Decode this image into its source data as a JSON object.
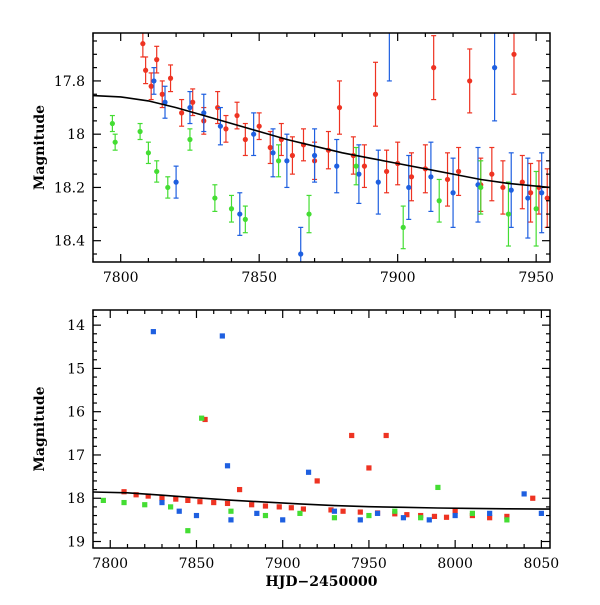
{
  "chart_data": [
    {
      "type": "scatter",
      "title": "",
      "xlabel": "",
      "ylabel": "Magnitude",
      "xlim": [
        7790,
        7955
      ],
      "ylim": [
        18.48,
        17.62
      ],
      "y_inverted": true,
      "grid": false,
      "xticks": [
        "7800",
        "7850",
        "7900",
        "7950"
      ],
      "yticks": [
        "17.8",
        "18",
        "18.2",
        "18.4"
      ],
      "colors": {
        "red": "#ee3322",
        "blue": "#1e5fe0",
        "green": "#44dd33",
        "model": "#000000"
      },
      "series": [
        {
          "color": "red",
          "points": [
            [
              7808,
              17.66,
              0.05
            ],
            [
              7809,
              17.76,
              0.05
            ],
            [
              7811,
              17.82,
              0.05
            ],
            [
              7813,
              17.72,
              0.05
            ],
            [
              7815,
              17.85,
              0.05
            ],
            [
              7818,
              17.79,
              0.05
            ],
            [
              7822,
              17.92,
              0.05
            ],
            [
              7826,
              17.88,
              0.05
            ],
            [
              7830,
              17.95,
              0.05
            ],
            [
              7835,
              17.9,
              0.06
            ],
            [
              7838,
              17.98,
              0.05
            ],
            [
              7842,
              17.93,
              0.05
            ],
            [
              7845,
              18.02,
              0.06
            ],
            [
              7850,
              17.97,
              0.05
            ],
            [
              7854,
              18.05,
              0.06
            ],
            [
              7858,
              18.02,
              0.06
            ],
            [
              7862,
              18.08,
              0.07
            ],
            [
              7866,
              18.04,
              0.06
            ],
            [
              7870,
              18.1,
              0.07
            ],
            [
              7875,
              18.06,
              0.07
            ],
            [
              7879,
              17.9,
              0.1
            ],
            [
              7884,
              18.08,
              0.07
            ],
            [
              7888,
              18.12,
              0.08
            ],
            [
              7892,
              17.85,
              0.12
            ],
            [
              7896,
              18.14,
              0.08
            ],
            [
              7900,
              18.11,
              0.08
            ],
            [
              7905,
              18.16,
              0.09
            ],
            [
              7910,
              18.13,
              0.09
            ],
            [
              7913,
              17.75,
              0.12
            ],
            [
              7918,
              18.17,
              0.1
            ],
            [
              7922,
              18.14,
              0.09
            ],
            [
              7926,
              17.8,
              0.12
            ],
            [
              7930,
              18.19,
              0.1
            ],
            [
              7934,
              18.15,
              0.1
            ],
            [
              7938,
              18.2,
              0.1
            ],
            [
              7942,
              17.7,
              0.15
            ],
            [
              7945,
              18.18,
              0.1
            ],
            [
              7948,
              18.22,
              0.11
            ],
            [
              7951,
              18.2,
              0.1
            ],
            [
              7954,
              18.24,
              0.11
            ]
          ]
        },
        {
          "color": "blue",
          "points": [
            [
              7812,
              17.8,
              0.05
            ],
            [
              7816,
              17.88,
              0.06
            ],
            [
              7820,
              18.18,
              0.06
            ],
            [
              7825,
              17.9,
              0.06
            ],
            [
              7830,
              17.92,
              0.07
            ],
            [
              7836,
              17.97,
              0.07
            ],
            [
              7843,
              18.3,
              0.08
            ],
            [
              7848,
              18.0,
              0.08
            ],
            [
              7855,
              18.07,
              0.09
            ],
            [
              7860,
              18.1,
              0.1
            ],
            [
              7865,
              18.45,
              0.1
            ],
            [
              7870,
              18.08,
              0.1
            ],
            [
              7878,
              18.12,
              0.1
            ],
            [
              7886,
              18.15,
              0.11
            ],
            [
              7893,
              18.18,
              0.12
            ],
            [
              7897,
              17.6,
              0.2
            ],
            [
              7904,
              18.2,
              0.12
            ],
            [
              7912,
              18.16,
              0.13
            ],
            [
              7920,
              18.22,
              0.13
            ],
            [
              7929,
              18.19,
              0.14
            ],
            [
              7935,
              17.75,
              0.2
            ],
            [
              7941,
              18.21,
              0.14
            ],
            [
              7947,
              18.24,
              0.15
            ],
            [
              7952,
              18.22,
              0.15
            ]
          ]
        },
        {
          "color": "green",
          "points": [
            [
              7797,
              17.96,
              0.03
            ],
            [
              7798,
              18.03,
              0.03
            ],
            [
              7807,
              17.99,
              0.03
            ],
            [
              7810,
              18.07,
              0.04
            ],
            [
              7813,
              18.14,
              0.04
            ],
            [
              7817,
              18.2,
              0.04
            ],
            [
              7825,
              18.02,
              0.04
            ],
            [
              7834,
              18.24,
              0.05
            ],
            [
              7840,
              18.28,
              0.05
            ],
            [
              7845,
              18.32,
              0.05
            ],
            [
              7857,
              18.1,
              0.06
            ],
            [
              7868,
              18.3,
              0.07
            ],
            [
              7885,
              18.12,
              0.07
            ],
            [
              7902,
              18.35,
              0.08
            ],
            [
              7915,
              18.25,
              0.08
            ],
            [
              7930,
              18.2,
              0.1
            ],
            [
              7940,
              18.3,
              0.12
            ],
            [
              7950,
              18.28,
              0.14
            ]
          ]
        }
      ],
      "model_curve": [
        [
          7790,
          17.855
        ],
        [
          7800,
          17.86
        ],
        [
          7810,
          17.875
        ],
        [
          7820,
          17.9
        ],
        [
          7830,
          17.93
        ],
        [
          7840,
          17.96
        ],
        [
          7850,
          17.99
        ],
        [
          7860,
          18.02
        ],
        [
          7870,
          18.045
        ],
        [
          7880,
          18.07
        ],
        [
          7890,
          18.09
        ],
        [
          7900,
          18.11
        ],
        [
          7910,
          18.13
        ],
        [
          7920,
          18.15
        ],
        [
          7930,
          18.17
        ],
        [
          7940,
          18.185
        ],
        [
          7955,
          18.2
        ]
      ]
    },
    {
      "type": "scatter",
      "title": "",
      "xlabel": "HJD−2450000",
      "ylabel": "Magnitude",
      "xlim": [
        7790,
        8055
      ],
      "ylim": [
        19.15,
        13.65
      ],
      "y_inverted": true,
      "grid": false,
      "xticks": [
        "7800",
        "7850",
        "7900",
        "7950",
        "8000",
        "8050"
      ],
      "yticks": [
        "14",
        "15",
        "16",
        "17",
        "18",
        "19"
      ],
      "colors": {
        "red": "#ee3322",
        "blue": "#1e5fe0",
        "green": "#44dd33",
        "model": "#000000"
      },
      "series": [
        {
          "color": "red",
          "points": [
            [
              7808,
              17.85
            ],
            [
              7815,
              17.92
            ],
            [
              7822,
              17.95
            ],
            [
              7830,
              18.0
            ],
            [
              7838,
              18.02
            ],
            [
              7845,
              18.05
            ],
            [
              7852,
              18.08
            ],
            [
              7855,
              16.18
            ],
            [
              7860,
              18.1
            ],
            [
              7868,
              18.12
            ],
            [
              7875,
              17.8
            ],
            [
              7882,
              18.15
            ],
            [
              7890,
              18.18
            ],
            [
              7898,
              18.2
            ],
            [
              7905,
              18.22
            ],
            [
              7912,
              18.25
            ],
            [
              7920,
              17.6
            ],
            [
              7928,
              18.27
            ],
            [
              7935,
              18.3
            ],
            [
              7940,
              16.55
            ],
            [
              7945,
              18.32
            ],
            [
              7950,
              17.3
            ],
            [
              7955,
              18.34
            ],
            [
              7960,
              16.55
            ],
            [
              7965,
              18.36
            ],
            [
              7972,
              18.38
            ],
            [
              7980,
              18.4
            ],
            [
              7988,
              18.42
            ],
            [
              7995,
              18.44
            ],
            [
              8000,
              18.3
            ],
            [
              8010,
              18.4
            ],
            [
              8020,
              18.45
            ],
            [
              8030,
              18.42
            ],
            [
              8045,
              18.0
            ]
          ]
        },
        {
          "color": "blue",
          "points": [
            [
              7825,
              14.15
            ],
            [
              7830,
              18.1
            ],
            [
              7840,
              18.3
            ],
            [
              7850,
              18.4
            ],
            [
              7865,
              14.25
            ],
            [
              7868,
              17.25
            ],
            [
              7870,
              18.5
            ],
            [
              7885,
              18.35
            ],
            [
              7900,
              18.5
            ],
            [
              7915,
              17.4
            ],
            [
              7930,
              18.3
            ],
            [
              7945,
              18.5
            ],
            [
              7955,
              18.35
            ],
            [
              7970,
              18.45
            ],
            [
              7985,
              18.5
            ],
            [
              8000,
              18.4
            ],
            [
              8020,
              18.35
            ],
            [
              8040,
              17.9
            ],
            [
              8050,
              18.35
            ]
          ]
        },
        {
          "color": "green",
          "points": [
            [
              7796,
              18.05
            ],
            [
              7808,
              18.1
            ],
            [
              7820,
              18.15
            ],
            [
              7835,
              18.2
            ],
            [
              7845,
              18.75
            ],
            [
              7853,
              16.15
            ],
            [
              7870,
              18.3
            ],
            [
              7890,
              18.4
            ],
            [
              7910,
              18.35
            ],
            [
              7930,
              18.45
            ],
            [
              7950,
              18.4
            ],
            [
              7965,
              18.3
            ],
            [
              7980,
              18.45
            ],
            [
              7990,
              17.75
            ],
            [
              8010,
              18.35
            ],
            [
              8030,
              18.5
            ]
          ]
        }
      ],
      "model_curve": [
        [
          7790,
          17.855
        ],
        [
          7810,
          17.875
        ],
        [
          7830,
          17.93
        ],
        [
          7850,
          17.99
        ],
        [
          7870,
          18.045
        ],
        [
          7890,
          18.09
        ],
        [
          7910,
          18.13
        ],
        [
          7930,
          18.17
        ],
        [
          7950,
          18.195
        ],
        [
          7970,
          18.21
        ],
        [
          7990,
          18.225
        ],
        [
          8010,
          18.235
        ],
        [
          8030,
          18.245
        ],
        [
          8055,
          18.25
        ]
      ]
    }
  ]
}
